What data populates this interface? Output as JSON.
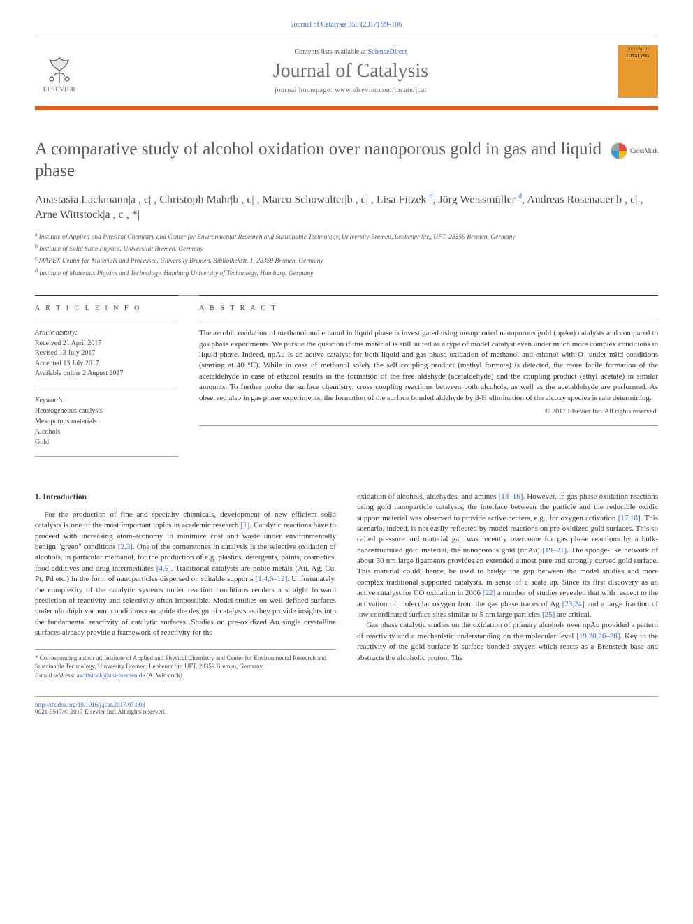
{
  "colors": {
    "accent_rule": "#d9651a",
    "link": "#3366cc",
    "cover_bg": "#e89a2e",
    "text_muted": "#5b5b5b"
  },
  "header": {
    "citation": "Journal of Catalysis 353 (2017) 99–106",
    "contents_prefix": "Contents lists available at ",
    "contents_link": "ScienceDirect",
    "journal_name": "Journal of Catalysis",
    "homepage_label": "journal homepage: www.elsevier.com/locate/jcat",
    "publisher": "ELSEVIER",
    "cover": {
      "top": "JOURNAL OF",
      "mid": "CATALYSIS"
    }
  },
  "article": {
    "title": "A comparative study of alcohol oxidation over nanoporous gold in gas and liquid phase",
    "crossmark": "CrossMark",
    "authors_html": "Anastasia Lackmann|a,c|, Christoph Mahr|b,c|, Marco Schowalter|b,c|, Lisa Fitzek|d|, Jörg Weissmüller|d|, Andreas Rosenauer|b,c|, Arne Wittstock|a,c,*|",
    "affiliations": [
      {
        "key": "a",
        "text": "Institute of Applied and Physical Chemistry and Center for Environmental Research and Sustainable Technology, University Bremen, Leobener Str., UFT, 28359 Bremen, Germany"
      },
      {
        "key": "b",
        "text": "Institute of Solid State Physics, Universität Bremen, Germany"
      },
      {
        "key": "c",
        "text": "MAPEX Center for Materials and Processes, University Bremen, Bibliothekstr. 1, 28359 Bremen, Germany"
      },
      {
        "key": "d",
        "text": "Institute of Materials Physics and Technology, Hamburg University of Technology, Hamburg, Germany"
      }
    ]
  },
  "info": {
    "heading": "A R T I C L E   I N F O",
    "history_label": "Article history:",
    "history": [
      "Received 21 April 2017",
      "Revised 13 July 2017",
      "Accepted 13 July 2017",
      "Available online 2 August 2017"
    ],
    "keywords_label": "Keywords:",
    "keywords": [
      "Heterogeneous catalysis",
      "Mesoporous materials",
      "Alcohols",
      "Gold"
    ]
  },
  "abstract": {
    "heading": "A B S T R A C T",
    "text": "The aerobic oxidation of methanol and ethanol in liquid phase is investigated using unsupported nanoporous gold (npAu) catalysts and compared to gas phase experiments. We pursue the question if this material is still suited as a type of model catalyst even under much more complex conditions in liquid phase. Indeed, npAu is an active catalyst for both liquid and gas phase oxidation of methanol and ethanol with O₂ under mild conditions (starting at 40 °C). While in case of methanol solely the self coupling product (methyl formate) is detected, the more facile formation of the acetaldehyde in case of ethanol results in the formation of the free aldehyde (acetaldehyde) and the coupling product (ethyl acetate) in similar amounts. To further probe the surface chemistry, cross coupling reactions between both alcohols, as well as the acetaldehyde are performed. As observed also in gas phase experiments, the formation of the surface bonded aldehyde by β-H elimination of the alcoxy species is rate determining.",
    "copyright": "© 2017 Elsevier Inc. All rights reserved."
  },
  "body": {
    "section_heading": "1. Introduction",
    "p1_a": "For the production of fine and specialty chemicals, development of new efficient solid catalysts is one of the most important topics in academic research ",
    "ref1": "[1]",
    "p1_b": ". Catalytic reactions have to proceed with increasing atom-economy to minimize cost and waste under environmentally benign \"green\" conditions ",
    "ref2": "[2,3]",
    "p1_c": ". One of the cornerstones in catalysis is the selective oxidation of alcohols, in particular methanol, for the production of e.g. plastics, detergents, paints, cosmetics, food additives and drug intermediates ",
    "ref3": "[4,5]",
    "p1_d": ". Traditional catalysts are noble metals (Au, Ag, Cu, Pt, Pd etc.) in the form of nanoparticles dispersed on suitable supports ",
    "ref4": "[1,4,6–12]",
    "p1_e": ". Unfortunately, the complexity of the catalytic systems under reaction conditions renders a straight forward prediction of reactivity and selectivity often impossible. Model studies on well-defined surfaces under ultrahigh vacuum conditions can guide the design of catalysts as they provide insights into the fundamental reactivity of catalytic surfaces. Studies on pre-oxidized Au single crystalline surfaces already provide a framework of reactivity for the",
    "p2_a": "oxidation of alcohols, aldehydes, and amines ",
    "ref5": "[13–16]",
    "p2_b": ". However, in gas phase oxidation reactions using gold nanoparticle catalysts, the interface between the particle and the reducible oxidic support material was observed to provide active centers, e.g., for oxygen activation ",
    "ref6": "[17,18]",
    "p2_c": ". This scenario, indeed, is not easily reflected by model reactions on pre-oxidized gold surfaces. This so called pressure and material gap was recently overcome for gas phase reactions by a bulk-nanostructured gold material, the nanoporous gold (npAu) ",
    "ref7": "[19–21]",
    "p2_d": ". The sponge-like network of about 30 nm large ligaments provides an extended almost pure and strongly curved gold surface. This material could, hence, be used to bridge the gap between the model studies and more complex traditional supported catalysts, in sense of a scale up. Since its first discovery as an active catalyst for CO oxidation in 2006 ",
    "ref8": "[22]",
    "p2_e": " a number of studies revealed that with respect to the activation of molecular oxygen from the gas phase traces of Ag ",
    "ref9": "[23,24]",
    "p2_f": " and a large fraction of low coordinated surface sites similar to 5 nm large particles ",
    "ref10": "[25]",
    "p2_g": " are critical.",
    "p3_a": "Gas phase catalytic studies on the oxidation of primary alcohols over npAu provided a pattern of reactivity and a mechanistic understanding on the molecular level ",
    "ref11": "[19,20,26–28]",
    "p3_b": ". Key to the reactivity of the gold surface is surface bonded oxygen which reacts as a Brønstedt base and abstracts the alcoholic proton. The"
  },
  "footnote": {
    "corr_label": "* Corresponding author at: ",
    "corr_text": "Institute of Applied and Physical Chemistry and Center for Environmental Research and Sustainable Technology, University Bremen, Leobener Str, UFT, 28359 Bremen, Germany.",
    "email_label": "E-mail address: ",
    "email": "awittstock@uni-bremen.de",
    "email_suffix": " (A. Wittstock)."
  },
  "footer": {
    "doi": "http://dx.doi.org/10.1016/j.jcat.2017.07.008",
    "issn_line": "0021-9517/© 2017 Elsevier Inc. All rights reserved."
  }
}
